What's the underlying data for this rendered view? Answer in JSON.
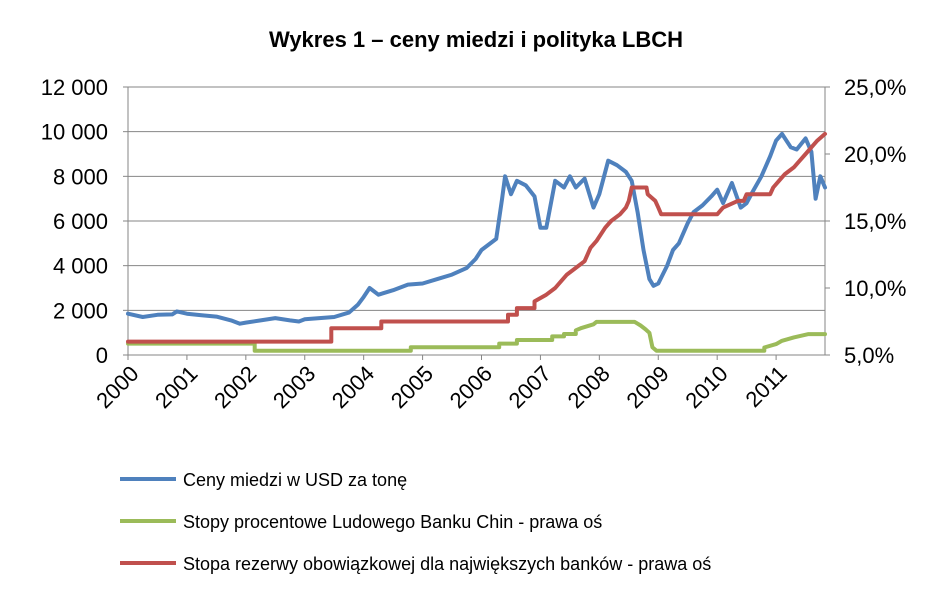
{
  "chart_data": {
    "type": "line",
    "title": "Wykres 1 – ceny miedzi i polityka LBCH",
    "x_range": [
      2000,
      2011.83
    ],
    "x_ticks": [
      "2000",
      "2001",
      "2002",
      "2003",
      "2004",
      "2005",
      "2006",
      "2007",
      "2008",
      "2009",
      "2010",
      "2011"
    ],
    "y_left": {
      "min": 0,
      "max": 12000,
      "ticks": [
        0,
        2000,
        4000,
        6000,
        8000,
        10000,
        12000
      ],
      "tick_labels": [
        "0",
        "2 000",
        "4 000",
        "6 000",
        "8 000",
        "10 000",
        "12 000"
      ]
    },
    "y_right": {
      "min": 5,
      "max": 25,
      "ticks": [
        5,
        10,
        15,
        20,
        25
      ],
      "tick_labels": [
        "5,0%",
        "10,0%",
        "15,0%",
        "20,0%",
        "25,0%"
      ]
    },
    "grid": "horizontal",
    "legend_position": "bottom",
    "series": [
      {
        "name": "Ceny miedzi w USD za tonę",
        "axis": "left",
        "color": "#4f81bd",
        "points": [
          [
            2000.0,
            1850
          ],
          [
            2000.25,
            1700
          ],
          [
            2000.5,
            1800
          ],
          [
            2000.75,
            1820
          ],
          [
            2000.83,
            1950
          ],
          [
            2001.0,
            1850
          ],
          [
            2001.25,
            1780
          ],
          [
            2001.5,
            1720
          ],
          [
            2001.75,
            1550
          ],
          [
            2001.9,
            1400
          ],
          [
            2002.0,
            1450
          ],
          [
            2002.25,
            1550
          ],
          [
            2002.5,
            1650
          ],
          [
            2002.75,
            1550
          ],
          [
            2002.9,
            1500
          ],
          [
            2003.0,
            1600
          ],
          [
            2003.25,
            1650
          ],
          [
            2003.5,
            1700
          ],
          [
            2003.75,
            1900
          ],
          [
            2003.9,
            2250
          ],
          [
            2004.0,
            2600
          ],
          [
            2004.1,
            3000
          ],
          [
            2004.25,
            2700
          ],
          [
            2004.5,
            2900
          ],
          [
            2004.75,
            3150
          ],
          [
            2005.0,
            3200
          ],
          [
            2005.25,
            3400
          ],
          [
            2005.5,
            3600
          ],
          [
            2005.75,
            3900
          ],
          [
            2005.9,
            4300
          ],
          [
            2006.0,
            4700
          ],
          [
            2006.25,
            5200
          ],
          [
            2006.35,
            7000
          ],
          [
            2006.4,
            8000
          ],
          [
            2006.5,
            7200
          ],
          [
            2006.6,
            7800
          ],
          [
            2006.75,
            7600
          ],
          [
            2006.9,
            7100
          ],
          [
            2007.0,
            5700
          ],
          [
            2007.1,
            5700
          ],
          [
            2007.25,
            7800
          ],
          [
            2007.4,
            7500
          ],
          [
            2007.5,
            8000
          ],
          [
            2007.6,
            7500
          ],
          [
            2007.75,
            7900
          ],
          [
            2007.9,
            6600
          ],
          [
            2008.0,
            7200
          ],
          [
            2008.15,
            8700
          ],
          [
            2008.3,
            8500
          ],
          [
            2008.45,
            8200
          ],
          [
            2008.55,
            7800
          ],
          [
            2008.65,
            6400
          ],
          [
            2008.75,
            4700
          ],
          [
            2008.85,
            3400
          ],
          [
            2008.92,
            3100
          ],
          [
            2009.0,
            3200
          ],
          [
            2009.15,
            4000
          ],
          [
            2009.25,
            4700
          ],
          [
            2009.35,
            5000
          ],
          [
            2009.5,
            5900
          ],
          [
            2009.6,
            6400
          ],
          [
            2009.75,
            6700
          ],
          [
            2009.9,
            7100
          ],
          [
            2010.0,
            7400
          ],
          [
            2010.1,
            6800
          ],
          [
            2010.25,
            7700
          ],
          [
            2010.4,
            6600
          ],
          [
            2010.5,
            6800
          ],
          [
            2010.6,
            7300
          ],
          [
            2010.75,
            8000
          ],
          [
            2010.9,
            8900
          ],
          [
            2011.0,
            9600
          ],
          [
            2011.1,
            9900
          ],
          [
            2011.25,
            9300
          ],
          [
            2011.35,
            9200
          ],
          [
            2011.5,
            9700
          ],
          [
            2011.6,
            9100
          ],
          [
            2011.67,
            7000
          ],
          [
            2011.75,
            8000
          ],
          [
            2011.83,
            7500
          ]
        ]
      },
      {
        "name": "Stopy procentowe Ludowego Banku Chin - prawa oś",
        "axis": "right",
        "color": "#9bbb59",
        "points": [
          [
            2000.0,
            5.85
          ],
          [
            2002.15,
            5.85
          ],
          [
            2002.15,
            5.31
          ],
          [
            2004.8,
            5.31
          ],
          [
            2004.8,
            5.58
          ],
          [
            2006.3,
            5.58
          ],
          [
            2006.3,
            5.85
          ],
          [
            2006.6,
            5.85
          ],
          [
            2006.6,
            6.12
          ],
          [
            2007.2,
            6.12
          ],
          [
            2007.2,
            6.39
          ],
          [
            2007.4,
            6.39
          ],
          [
            2007.4,
            6.57
          ],
          [
            2007.6,
            6.57
          ],
          [
            2007.6,
            6.84
          ],
          [
            2007.7,
            7.02
          ],
          [
            2007.9,
            7.29
          ],
          [
            2007.95,
            7.47
          ],
          [
            2008.6,
            7.47
          ],
          [
            2008.7,
            7.2
          ],
          [
            2008.78,
            6.93
          ],
          [
            2008.85,
            6.66
          ],
          [
            2008.9,
            5.58
          ],
          [
            2008.97,
            5.31
          ],
          [
            2010.8,
            5.31
          ],
          [
            2010.8,
            5.56
          ],
          [
            2011.0,
            5.81
          ],
          [
            2011.1,
            6.06
          ],
          [
            2011.3,
            6.31
          ],
          [
            2011.55,
            6.56
          ],
          [
            2011.83,
            6.56
          ]
        ]
      },
      {
        "name": "Stopa rezerwy obowiązkowej dla największych banków - prawa oś",
        "axis": "right",
        "color": "#c0504d",
        "points": [
          [
            2000.0,
            6.0
          ],
          [
            2003.45,
            6.0
          ],
          [
            2003.45,
            7.0
          ],
          [
            2004.3,
            7.0
          ],
          [
            2004.3,
            7.5
          ],
          [
            2006.45,
            7.5
          ],
          [
            2006.45,
            8.0
          ],
          [
            2006.6,
            8.0
          ],
          [
            2006.6,
            8.5
          ],
          [
            2006.9,
            8.5
          ],
          [
            2006.9,
            9.0
          ],
          [
            2007.1,
            9.5
          ],
          [
            2007.25,
            10.0
          ],
          [
            2007.35,
            10.5
          ],
          [
            2007.45,
            11.0
          ],
          [
            2007.6,
            11.5
          ],
          [
            2007.75,
            12.0
          ],
          [
            2007.85,
            13.0
          ],
          [
            2007.95,
            13.5
          ],
          [
            2008.1,
            14.5
          ],
          [
            2008.2,
            15.0
          ],
          [
            2008.35,
            15.5
          ],
          [
            2008.45,
            16.0
          ],
          [
            2008.5,
            16.5
          ],
          [
            2008.55,
            17.5
          ],
          [
            2008.8,
            17.5
          ],
          [
            2008.82,
            17.0
          ],
          [
            2008.95,
            16.5
          ],
          [
            2009.0,
            16.0
          ],
          [
            2009.05,
            15.5
          ],
          [
            2010.0,
            15.5
          ],
          [
            2010.1,
            16.0
          ],
          [
            2010.35,
            16.5
          ],
          [
            2010.45,
            16.5
          ],
          [
            2010.5,
            17.0
          ],
          [
            2010.9,
            17.0
          ],
          [
            2010.95,
            17.5
          ],
          [
            2011.05,
            18.0
          ],
          [
            2011.15,
            18.5
          ],
          [
            2011.3,
            19.0
          ],
          [
            2011.4,
            19.5
          ],
          [
            2011.5,
            20.0
          ],
          [
            2011.6,
            20.5
          ],
          [
            2011.7,
            21.0
          ],
          [
            2011.83,
            21.5
          ]
        ]
      }
    ]
  }
}
